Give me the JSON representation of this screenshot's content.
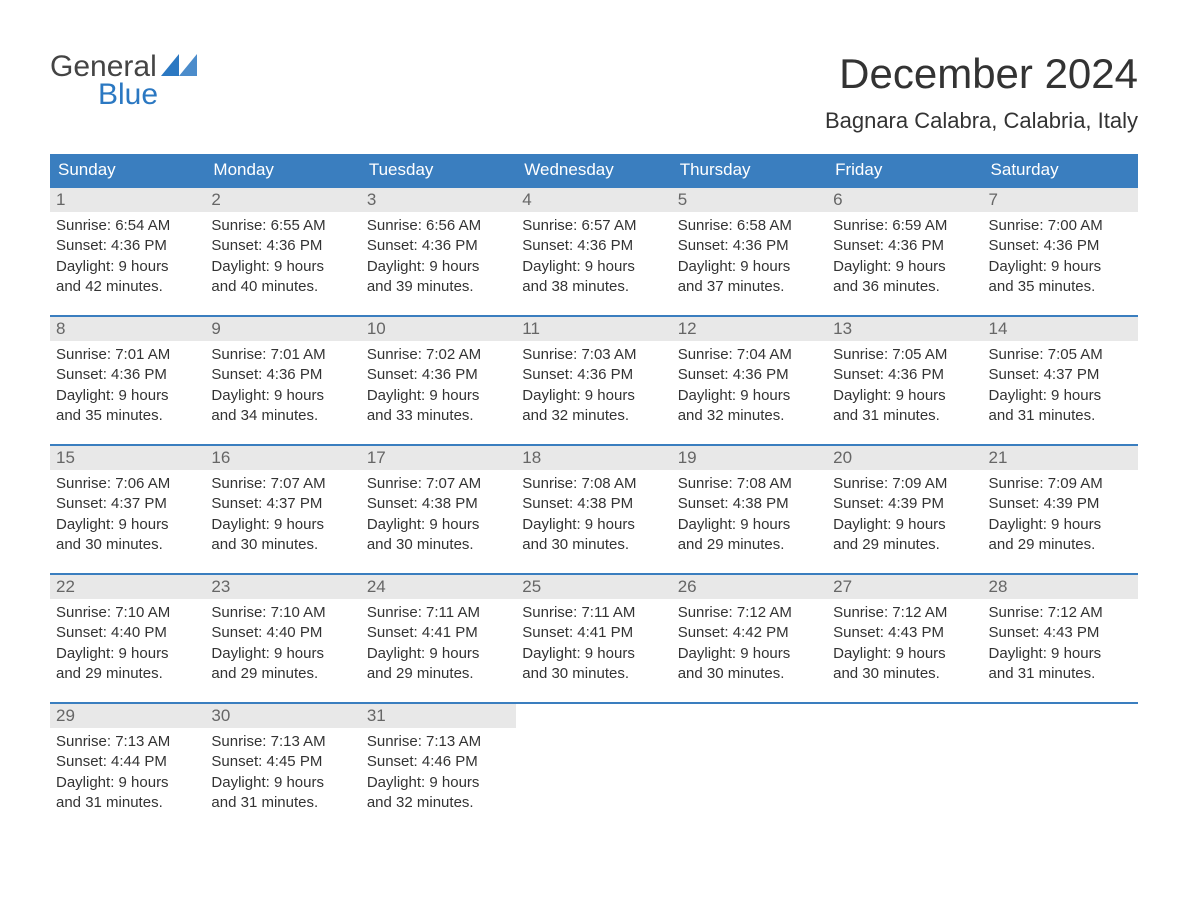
{
  "brand": {
    "name_part1": "General",
    "name_part2": "Blue",
    "primary_color": "#2b78c2",
    "text_color": "#444444"
  },
  "title": "December 2024",
  "location": "Bagnara Calabra, Calabria, Italy",
  "colors": {
    "header_bg": "#3a7ebf",
    "header_text": "#ffffff",
    "daynum_bg": "#e8e8e8",
    "daynum_text": "#666666",
    "body_text": "#333333",
    "week_border": "#3a7ebf",
    "page_bg": "#ffffff"
  },
  "fonts": {
    "month_title_size": 42,
    "location_size": 22,
    "dow_size": 17,
    "daynum_size": 17,
    "body_size": 15
  },
  "days_of_week": [
    "Sunday",
    "Monday",
    "Tuesday",
    "Wednesday",
    "Thursday",
    "Friday",
    "Saturday"
  ],
  "weeks": [
    [
      {
        "n": "1",
        "sunrise": "Sunrise: 6:54 AM",
        "sunset": "Sunset: 4:36 PM",
        "d1": "Daylight: 9 hours",
        "d2": "and 42 minutes."
      },
      {
        "n": "2",
        "sunrise": "Sunrise: 6:55 AM",
        "sunset": "Sunset: 4:36 PM",
        "d1": "Daylight: 9 hours",
        "d2": "and 40 minutes."
      },
      {
        "n": "3",
        "sunrise": "Sunrise: 6:56 AM",
        "sunset": "Sunset: 4:36 PM",
        "d1": "Daylight: 9 hours",
        "d2": "and 39 minutes."
      },
      {
        "n": "4",
        "sunrise": "Sunrise: 6:57 AM",
        "sunset": "Sunset: 4:36 PM",
        "d1": "Daylight: 9 hours",
        "d2": "and 38 minutes."
      },
      {
        "n": "5",
        "sunrise": "Sunrise: 6:58 AM",
        "sunset": "Sunset: 4:36 PM",
        "d1": "Daylight: 9 hours",
        "d2": "and 37 minutes."
      },
      {
        "n": "6",
        "sunrise": "Sunrise: 6:59 AM",
        "sunset": "Sunset: 4:36 PM",
        "d1": "Daylight: 9 hours",
        "d2": "and 36 minutes."
      },
      {
        "n": "7",
        "sunrise": "Sunrise: 7:00 AM",
        "sunset": "Sunset: 4:36 PM",
        "d1": "Daylight: 9 hours",
        "d2": "and 35 minutes."
      }
    ],
    [
      {
        "n": "8",
        "sunrise": "Sunrise: 7:01 AM",
        "sunset": "Sunset: 4:36 PM",
        "d1": "Daylight: 9 hours",
        "d2": "and 35 minutes."
      },
      {
        "n": "9",
        "sunrise": "Sunrise: 7:01 AM",
        "sunset": "Sunset: 4:36 PM",
        "d1": "Daylight: 9 hours",
        "d2": "and 34 minutes."
      },
      {
        "n": "10",
        "sunrise": "Sunrise: 7:02 AM",
        "sunset": "Sunset: 4:36 PM",
        "d1": "Daylight: 9 hours",
        "d2": "and 33 minutes."
      },
      {
        "n": "11",
        "sunrise": "Sunrise: 7:03 AM",
        "sunset": "Sunset: 4:36 PM",
        "d1": "Daylight: 9 hours",
        "d2": "and 32 minutes."
      },
      {
        "n": "12",
        "sunrise": "Sunrise: 7:04 AM",
        "sunset": "Sunset: 4:36 PM",
        "d1": "Daylight: 9 hours",
        "d2": "and 32 minutes."
      },
      {
        "n": "13",
        "sunrise": "Sunrise: 7:05 AM",
        "sunset": "Sunset: 4:36 PM",
        "d1": "Daylight: 9 hours",
        "d2": "and 31 minutes."
      },
      {
        "n": "14",
        "sunrise": "Sunrise: 7:05 AM",
        "sunset": "Sunset: 4:37 PM",
        "d1": "Daylight: 9 hours",
        "d2": "and 31 minutes."
      }
    ],
    [
      {
        "n": "15",
        "sunrise": "Sunrise: 7:06 AM",
        "sunset": "Sunset: 4:37 PM",
        "d1": "Daylight: 9 hours",
        "d2": "and 30 minutes."
      },
      {
        "n": "16",
        "sunrise": "Sunrise: 7:07 AM",
        "sunset": "Sunset: 4:37 PM",
        "d1": "Daylight: 9 hours",
        "d2": "and 30 minutes."
      },
      {
        "n": "17",
        "sunrise": "Sunrise: 7:07 AM",
        "sunset": "Sunset: 4:38 PM",
        "d1": "Daylight: 9 hours",
        "d2": "and 30 minutes."
      },
      {
        "n": "18",
        "sunrise": "Sunrise: 7:08 AM",
        "sunset": "Sunset: 4:38 PM",
        "d1": "Daylight: 9 hours",
        "d2": "and 30 minutes."
      },
      {
        "n": "19",
        "sunrise": "Sunrise: 7:08 AM",
        "sunset": "Sunset: 4:38 PM",
        "d1": "Daylight: 9 hours",
        "d2": "and 29 minutes."
      },
      {
        "n": "20",
        "sunrise": "Sunrise: 7:09 AM",
        "sunset": "Sunset: 4:39 PM",
        "d1": "Daylight: 9 hours",
        "d2": "and 29 minutes."
      },
      {
        "n": "21",
        "sunrise": "Sunrise: 7:09 AM",
        "sunset": "Sunset: 4:39 PM",
        "d1": "Daylight: 9 hours",
        "d2": "and 29 minutes."
      }
    ],
    [
      {
        "n": "22",
        "sunrise": "Sunrise: 7:10 AM",
        "sunset": "Sunset: 4:40 PM",
        "d1": "Daylight: 9 hours",
        "d2": "and 29 minutes."
      },
      {
        "n": "23",
        "sunrise": "Sunrise: 7:10 AM",
        "sunset": "Sunset: 4:40 PM",
        "d1": "Daylight: 9 hours",
        "d2": "and 29 minutes."
      },
      {
        "n": "24",
        "sunrise": "Sunrise: 7:11 AM",
        "sunset": "Sunset: 4:41 PM",
        "d1": "Daylight: 9 hours",
        "d2": "and 29 minutes."
      },
      {
        "n": "25",
        "sunrise": "Sunrise: 7:11 AM",
        "sunset": "Sunset: 4:41 PM",
        "d1": "Daylight: 9 hours",
        "d2": "and 30 minutes."
      },
      {
        "n": "26",
        "sunrise": "Sunrise: 7:12 AM",
        "sunset": "Sunset: 4:42 PM",
        "d1": "Daylight: 9 hours",
        "d2": "and 30 minutes."
      },
      {
        "n": "27",
        "sunrise": "Sunrise: 7:12 AM",
        "sunset": "Sunset: 4:43 PM",
        "d1": "Daylight: 9 hours",
        "d2": "and 30 minutes."
      },
      {
        "n": "28",
        "sunrise": "Sunrise: 7:12 AM",
        "sunset": "Sunset: 4:43 PM",
        "d1": "Daylight: 9 hours",
        "d2": "and 31 minutes."
      }
    ],
    [
      {
        "n": "29",
        "sunrise": "Sunrise: 7:13 AM",
        "sunset": "Sunset: 4:44 PM",
        "d1": "Daylight: 9 hours",
        "d2": "and 31 minutes."
      },
      {
        "n": "30",
        "sunrise": "Sunrise: 7:13 AM",
        "sunset": "Sunset: 4:45 PM",
        "d1": "Daylight: 9 hours",
        "d2": "and 31 minutes."
      },
      {
        "n": "31",
        "sunrise": "Sunrise: 7:13 AM",
        "sunset": "Sunset: 4:46 PM",
        "d1": "Daylight: 9 hours",
        "d2": "and 32 minutes."
      },
      {
        "empty": true
      },
      {
        "empty": true
      },
      {
        "empty": true
      },
      {
        "empty": true
      }
    ]
  ]
}
